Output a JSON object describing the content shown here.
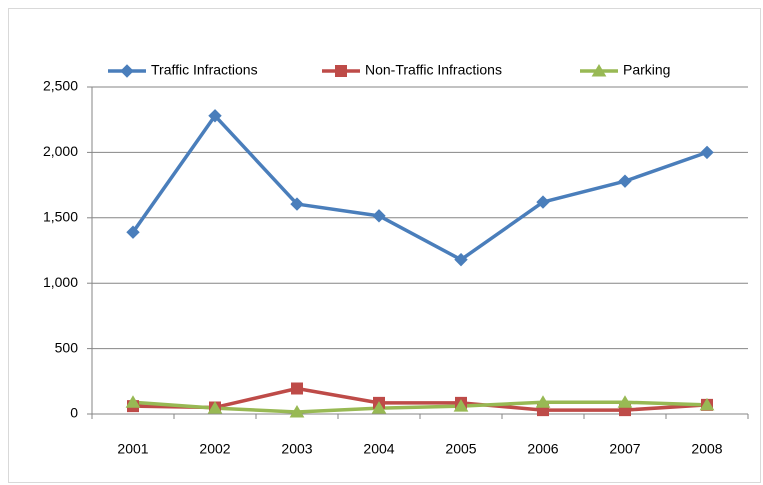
{
  "chart_data": {
    "type": "line",
    "categories": [
      "2001",
      "2002",
      "2003",
      "2004",
      "2005",
      "2006",
      "2007",
      "2008"
    ],
    "series": [
      {
        "name": "Traffic Infractions",
        "color": "#4a7ebb",
        "marker": "diamond",
        "values": [
          1390,
          2280,
          1605,
          1515,
          1180,
          1620,
          1780,
          2000
        ]
      },
      {
        "name": "Non-Traffic Infractions",
        "color": "#be4b48",
        "marker": "square",
        "values": [
          60,
          50,
          195,
          85,
          85,
          30,
          30,
          70
        ]
      },
      {
        "name": "Parking",
        "color": "#98b954",
        "marker": "triangle",
        "values": [
          90,
          45,
          15,
          45,
          60,
          90,
          90,
          70
        ]
      }
    ],
    "ylim": [
      0,
      2500
    ],
    "yticks": [
      0,
      500,
      {
        "value": 1000,
        "label": "1,000"
      },
      {
        "value": 1500,
        "label": "1,500"
      },
      {
        "value": 2000,
        "label": "2,000"
      },
      {
        "value": 2500,
        "label": "2,500"
      }
    ],
    "grid": true,
    "legend": "top"
  }
}
